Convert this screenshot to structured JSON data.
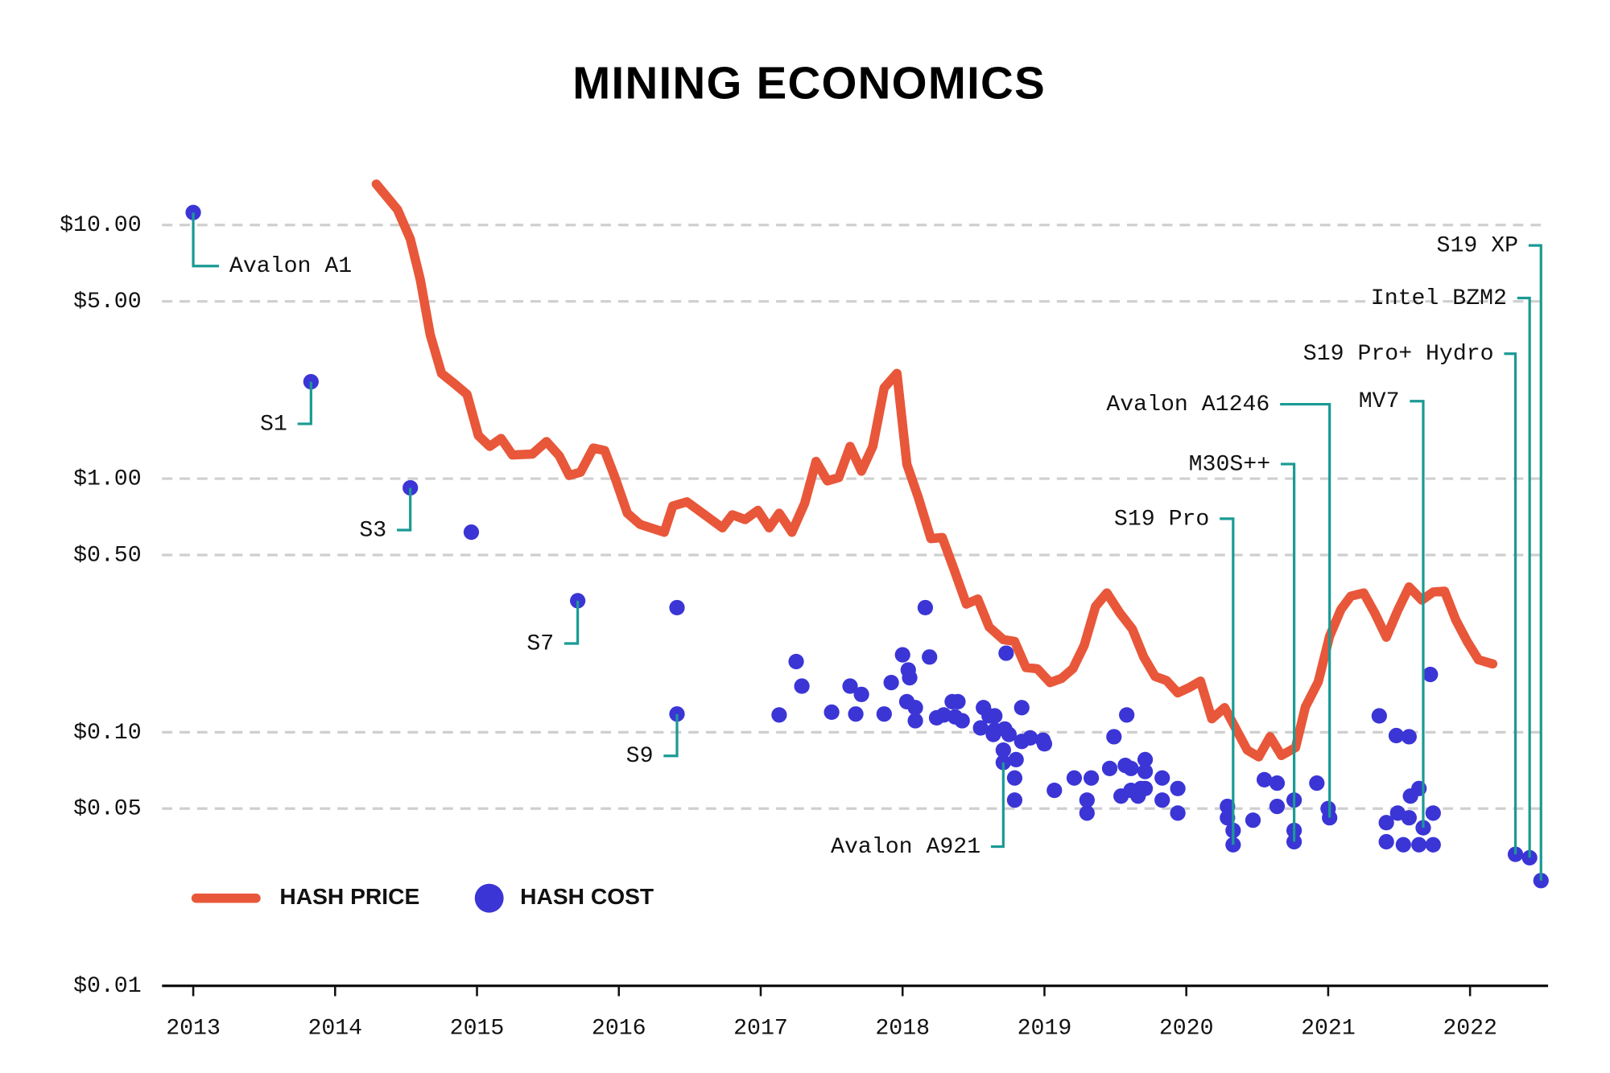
{
  "chart_data": {
    "type": "line",
    "title": "MINING ECONOMICS",
    "log_scale_y": true,
    "grid": true,
    "xlim": [
      2012.78,
      2022.55
    ],
    "xticks": [
      2013,
      2014,
      2015,
      2016,
      2017,
      2018,
      2019,
      2020,
      2021,
      2022
    ],
    "ylim": [
      0.01,
      16
    ],
    "yticks": [
      {
        "value": 0.01,
        "label": "$0.01"
      },
      {
        "value": 0.05,
        "label": "$0.05"
      },
      {
        "value": 0.1,
        "label": "$0.10"
      },
      {
        "value": 0.5,
        "label": "$0.50"
      },
      {
        "value": 1,
        "label": "$1.00"
      },
      {
        "value": 5,
        "label": "$5.00"
      },
      {
        "value": 10,
        "label": "$10.00"
      }
    ],
    "series": [
      {
        "name": "HASH PRICE",
        "type": "line",
        "color": "#e8573a",
        "x": [
          2014.29,
          2014.44,
          2014.53,
          2014.6,
          2014.67,
          2014.75,
          2014.84,
          2014.93,
          2015.01,
          2015.09,
          2015.17,
          2015.25,
          2015.39,
          2015.49,
          2015.58,
          2015.65,
          2015.73,
          2015.82,
          2015.9,
          2015.97,
          2016.06,
          2016.15,
          2016.32,
          2016.38,
          2016.48,
          2016.73,
          2016.8,
          2016.89,
          2016.98,
          2017.06,
          2017.13,
          2017.22,
          2017.31,
          2017.39,
          2017.47,
          2017.55,
          2017.63,
          2017.71,
          2017.79,
          2017.87,
          2017.96,
          2018.03,
          2018.11,
          2018.2,
          2018.28,
          2018.36,
          2018.45,
          2018.53,
          2018.61,
          2018.71,
          2018.79,
          2018.87,
          2018.95,
          2019.04,
          2019.12,
          2019.2,
          2019.28,
          2019.36,
          2019.44,
          2019.53,
          2019.62,
          2019.7,
          2019.78,
          2019.86,
          2019.94,
          2020.02,
          2020.1,
          2020.18,
          2020.27,
          2020.35,
          2020.43,
          2020.51,
          2020.59,
          2020.67,
          2020.77,
          2020.84,
          2020.93,
          2021.01,
          2021.09,
          2021.16,
          2021.25,
          2021.33,
          2021.41,
          2021.49,
          2021.57,
          2021.66,
          2021.74,
          2021.82,
          2021.9,
          2021.98,
          2022.06,
          2022.16
        ],
        "values": [
          14.5,
          11.5,
          8.8,
          6.1,
          3.7,
          2.6,
          2.37,
          2.15,
          1.48,
          1.34,
          1.44,
          1.24,
          1.25,
          1.4,
          1.23,
          1.03,
          1.06,
          1.32,
          1.29,
          1.02,
          0.73,
          0.66,
          0.615,
          0.78,
          0.81,
          0.64,
          0.72,
          0.69,
          0.75,
          0.64,
          0.73,
          0.615,
          0.8,
          1.17,
          0.98,
          1.01,
          1.34,
          1.07,
          1.34,
          2.28,
          2.6,
          1.14,
          0.845,
          0.58,
          0.586,
          0.443,
          0.32,
          0.335,
          0.26,
          0.232,
          0.228,
          0.18,
          0.178,
          0.157,
          0.163,
          0.178,
          0.22,
          0.313,
          0.354,
          0.296,
          0.255,
          0.198,
          0.166,
          0.16,
          0.143,
          0.15,
          0.159,
          0.113,
          0.125,
          0.103,
          0.085,
          0.08,
          0.096,
          0.081,
          0.087,
          0.126,
          0.158,
          0.239,
          0.305,
          0.344,
          0.354,
          0.294,
          0.237,
          0.302,
          0.374,
          0.332,
          0.357,
          0.36,
          0.277,
          0.228,
          0.193,
          0.186
        ]
      },
      {
        "name": "HASH COST",
        "type": "scatter",
        "color": "#3b35d6",
        "x": [
          2013.0,
          2013.83,
          2014.53,
          2014.96,
          2015.71,
          2016.41,
          2016.41,
          2017.13,
          2017.25,
          2017.29,
          2017.5,
          2017.63,
          2017.67,
          2017.71,
          2017.87,
          2017.92,
          2018.0,
          2018.04,
          2018.05,
          2018.03,
          2018.09,
          2018.09,
          2018.16,
          2018.19,
          2018.24,
          2018.29,
          2018.35,
          2018.39,
          2018.37,
          2018.42,
          2018.57,
          2018.55,
          2018.61,
          2018.65,
          2018.65,
          2018.64,
          2018.73,
          2018.72,
          2018.75,
          2018.71,
          2018.8,
          2018.71,
          2018.79,
          2018.79,
          2018.84,
          2018.84,
          2018.9,
          2018.99,
          2019.0,
          2019.07,
          2019.21,
          2019.3,
          2019.3,
          2019.33,
          2019.46,
          2019.49,
          2019.58,
          2019.57,
          2019.54,
          2019.61,
          2019.61,
          2019.66,
          2019.68,
          2019.71,
          2019.71,
          2019.71,
          2019.83,
          2019.83,
          2019.94,
          2019.94,
          2020.29,
          2020.29,
          2020.33,
          2020.33,
          2020.47,
          2020.55,
          2020.64,
          2020.64,
          2020.76,
          2020.76,
          2020.76,
          2020.92,
          2021.0,
          2021.01,
          2021.36,
          2021.48,
          2021.57,
          2021.41,
          2021.41,
          2021.49,
          2021.53,
          2021.58,
          2021.57,
          2021.64,
          2021.64,
          2021.67,
          2021.72,
          2021.74,
          2021.74,
          2022.32,
          2022.42,
          2022.5
        ],
        "values": [
          11.2,
          2.41,
          0.92,
          0.615,
          0.33,
          0.31,
          0.118,
          0.117,
          0.19,
          0.152,
          0.12,
          0.152,
          0.118,
          0.141,
          0.118,
          0.157,
          0.202,
          0.176,
          0.164,
          0.132,
          0.125,
          0.111,
          0.31,
          0.198,
          0.114,
          0.117,
          0.132,
          0.132,
          0.115,
          0.111,
          0.125,
          0.104,
          0.116,
          0.116,
          0.102,
          0.098,
          0.205,
          0.103,
          0.098,
          0.085,
          0.078,
          0.076,
          0.066,
          0.054,
          0.125,
          0.092,
          0.095,
          0.093,
          0.09,
          0.059,
          0.066,
          0.054,
          0.048,
          0.066,
          0.072,
          0.096,
          0.117,
          0.074,
          0.056,
          0.059,
          0.072,
          0.056,
          0.06,
          0.078,
          0.07,
          0.06,
          0.066,
          0.054,
          0.06,
          0.048,
          0.051,
          0.046,
          0.041,
          0.036,
          0.045,
          0.065,
          0.063,
          0.051,
          0.054,
          0.041,
          0.037,
          0.063,
          0.05,
          0.046,
          0.116,
          0.097,
          0.096,
          0.044,
          0.037,
          0.048,
          0.036,
          0.056,
          0.046,
          0.06,
          0.036,
          0.042,
          0.169,
          0.048,
          0.036,
          0.033,
          0.032,
          0.026
        ]
      }
    ],
    "annotation_color": "#1a9a94",
    "annotations": [
      {
        "text": "Avalon A1",
        "x": 2013.0,
        "y": 11.2
      },
      {
        "text": "S1",
        "x": 2013.83,
        "y": 2.41
      },
      {
        "text": "S3",
        "x": 2014.53,
        "y": 0.92
      },
      {
        "text": "S7",
        "x": 2015.71,
        "y": 0.33
      },
      {
        "text": "S9",
        "x": 2016.41,
        "y": 0.118
      },
      {
        "text": "Avalon A921",
        "x": 2018.71,
        "y": 0.076
      },
      {
        "text": "S19 Pro",
        "x": 2020.33,
        "y": 0.036
      },
      {
        "text": "M30S++",
        "x": 2020.76,
        "y": 0.037
      },
      {
        "text": "Avalon A1246",
        "x": 2021.01,
        "y": 0.046
      },
      {
        "text": "MV7",
        "x": 2021.67,
        "y": 0.042
      },
      {
        "text": "S19 Pro+ Hydro",
        "x": 2022.32,
        "y": 0.033
      },
      {
        "text": "Intel BZM2",
        "x": 2022.42,
        "y": 0.032
      },
      {
        "text": "S19 XP",
        "x": 2022.5,
        "y": 0.026
      }
    ]
  }
}
